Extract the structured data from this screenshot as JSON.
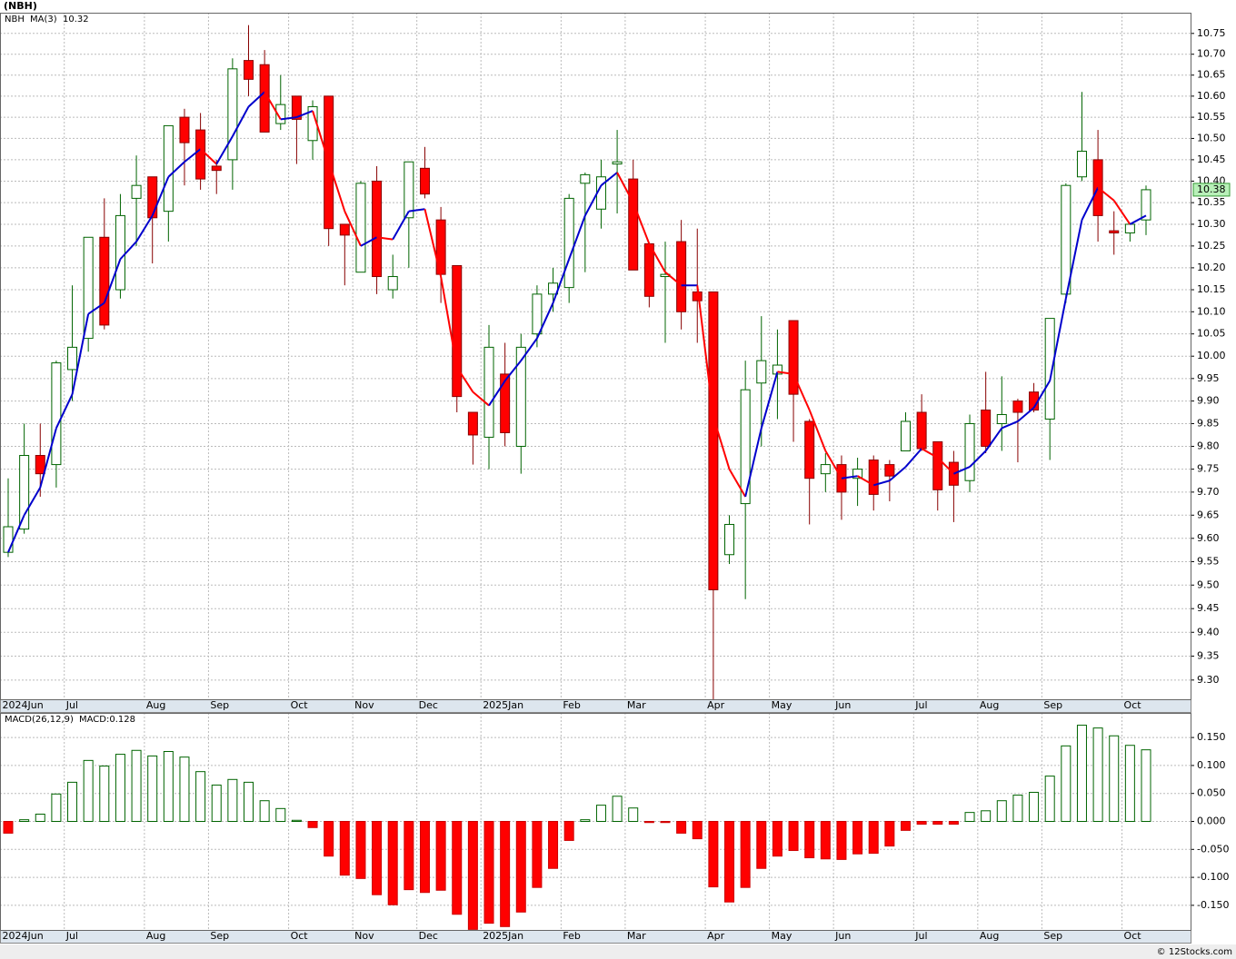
{
  "chart_data": [
    {
      "type": "candlestick",
      "title": "(NBH)",
      "symbol": "NBH",
      "log_scale": true,
      "grid": true,
      "up_color": "#006400",
      "down_color": "#ff0000",
      "categories": [
        "2024Jun",
        null,
        null,
        null,
        "Jul",
        null,
        null,
        null,
        null,
        "Aug",
        null,
        null,
        null,
        "Sep",
        null,
        null,
        null,
        null,
        "Oct",
        null,
        null,
        null,
        "Nov",
        null,
        null,
        null,
        "Dec",
        null,
        null,
        null,
        "2025Jan",
        null,
        null,
        null,
        null,
        "Feb",
        null,
        null,
        null,
        "Mar",
        null,
        null,
        null,
        null,
        "Apr",
        null,
        null,
        null,
        "May",
        null,
        null,
        null,
        "Jun",
        null,
        null,
        null,
        null,
        "Jul",
        null,
        null,
        null,
        "Aug",
        null,
        null,
        null,
        "Sep",
        null,
        null,
        null,
        null,
        "Oct",
        null
      ],
      "open": [
        9.57,
        9.62,
        9.78,
        9.76,
        9.97,
        10.04,
        10.27,
        10.15,
        10.36,
        10.41,
        10.33,
        10.55,
        10.52,
        10.435,
        10.45,
        10.685,
        10.675,
        10.535,
        10.6,
        10.495,
        10.6,
        10.3,
        10.19,
        10.4,
        10.15,
        10.315,
        10.43,
        10.31,
        10.205,
        9.875,
        9.82,
        9.96,
        9.8,
        10.05,
        10.14,
        10.155,
        10.395,
        10.335,
        10.44,
        10.405,
        10.255,
        10.18,
        10.26,
        10.145,
        10.145,
        9.565,
        9.675,
        9.94,
        9.96,
        10.08,
        9.855,
        9.74,
        9.76,
        9.73,
        9.77,
        9.76,
        9.79,
        9.875,
        9.81,
        9.765,
        9.725,
        9.88,
        9.85,
        9.9,
        9.92,
        9.86,
        10.14,
        10.41,
        10.45,
        10.285,
        10.28,
        10.31
      ],
      "high": [
        9.73,
        9.85,
        9.85,
        9.99,
        10.16,
        10.27,
        10.36,
        10.37,
        10.46,
        10.41,
        10.53,
        10.57,
        10.56,
        10.45,
        10.69,
        10.77,
        10.71,
        10.65,
        10.6,
        10.59,
        10.6,
        10.3,
        10.4,
        10.435,
        10.23,
        10.445,
        10.48,
        10.34,
        10.205,
        9.875,
        10.07,
        10.03,
        10.05,
        10.16,
        10.2,
        10.37,
        10.42,
        10.45,
        10.52,
        10.45,
        10.255,
        10.26,
        10.31,
        10.29,
        10.145,
        9.65,
        9.99,
        10.09,
        10.06,
        10.08,
        9.86,
        9.785,
        9.78,
        9.775,
        9.78,
        9.77,
        9.875,
        9.915,
        9.81,
        9.79,
        9.87,
        9.965,
        9.955,
        9.905,
        9.94,
        10.085,
        10.395,
        10.61,
        10.52,
        10.33,
        10.3,
        10.39
      ],
      "low": [
        9.56,
        9.61,
        9.69,
        9.71,
        9.9,
        10.01,
        10.06,
        10.13,
        10.25,
        10.21,
        10.26,
        10.39,
        10.38,
        10.37,
        10.38,
        10.6,
        10.515,
        10.52,
        10.44,
        10.45,
        10.25,
        10.16,
        10.19,
        10.14,
        10.13,
        10.2,
        10.36,
        10.12,
        9.875,
        9.76,
        9.75,
        9.8,
        9.74,
        10.02,
        10.1,
        10.12,
        10.19,
        10.29,
        10.325,
        10.195,
        10.11,
        10.03,
        10.06,
        10.03,
        9.26,
        9.545,
        9.47,
        9.8,
        9.86,
        9.81,
        9.63,
        9.7,
        9.64,
        9.67,
        9.66,
        9.68,
        9.79,
        9.79,
        9.66,
        9.635,
        9.7,
        9.785,
        9.79,
        9.765,
        9.875,
        9.77,
        10.12,
        10.4,
        10.26,
        10.23,
        10.26,
        10.275
      ],
      "close": [
        9.625,
        9.78,
        9.74,
        9.985,
        10.02,
        10.27,
        10.07,
        10.32,
        10.39,
        10.315,
        10.53,
        10.49,
        10.405,
        10.425,
        10.665,
        10.64,
        10.515,
        10.58,
        10.545,
        10.575,
        10.29,
        10.275,
        10.395,
        10.18,
        10.18,
        10.445,
        10.37,
        10.185,
        9.91,
        9.825,
        10.02,
        9.83,
        10.02,
        10.14,
        10.165,
        10.36,
        10.415,
        10.41,
        10.445,
        10.195,
        10.135,
        10.185,
        10.1,
        10.125,
        9.49,
        9.63,
        9.925,
        9.99,
        9.98,
        9.915,
        9.73,
        9.76,
        9.7,
        9.75,
        9.695,
        9.735,
        9.855,
        9.795,
        9.705,
        9.715,
        9.85,
        9.8,
        9.87,
        9.875,
        9.88,
        10.085,
        10.39,
        10.47,
        10.32,
        10.28,
        10.3,
        10.38
      ],
      "last_price_label": "10.38",
      "series": [
        {
          "name": "MA(3)",
          "color": "#0000cc",
          "down_color": "#ff0000",
          "value_label": "10.32",
          "values": [
            9.57,
            9.65,
            9.71,
            9.84,
            9.915,
            10.095,
            10.12,
            10.22,
            10.26,
            10.32,
            10.41,
            10.445,
            10.475,
            10.44,
            10.505,
            10.575,
            10.61,
            10.545,
            10.55,
            10.565,
            10.445,
            10.33,
            10.25,
            10.27,
            10.265,
            10.33,
            10.335,
            10.18,
            9.975,
            9.92,
            9.89,
            9.945,
            9.99,
            10.04,
            10.12,
            10.22,
            10.32,
            10.39,
            10.42,
            10.35,
            10.255,
            10.19,
            10.16,
            10.16,
            9.865,
            9.75,
            9.69,
            9.84,
            9.965,
            9.96,
            9.88,
            9.79,
            9.73,
            9.735,
            9.715,
            9.725,
            9.755,
            9.795,
            9.775,
            9.74,
            9.755,
            9.79,
            9.84,
            9.855,
            9.885,
            9.945,
            10.13,
            10.31,
            10.385,
            10.355,
            10.3,
            10.32
          ]
        }
      ],
      "ylim": [
        9.26,
        10.8
      ],
      "yticks": [
        {
          "value": 9.3,
          "label": "9.30"
        },
        {
          "value": 9.35,
          "label": "9.35"
        },
        {
          "value": 9.4,
          "label": "9.40"
        },
        {
          "value": 9.45,
          "label": "9.45"
        },
        {
          "value": 9.5,
          "label": "9.50"
        },
        {
          "value": 9.55,
          "label": "9.55"
        },
        {
          "value": 9.6,
          "label": "9.60"
        },
        {
          "value": 9.65,
          "label": "9.65"
        },
        {
          "value": 9.7,
          "label": "9.70"
        },
        {
          "value": 9.75,
          "label": "9.75"
        },
        {
          "value": 9.8,
          "label": "9.80"
        },
        {
          "value": 9.85,
          "label": "9.85"
        },
        {
          "value": 9.9,
          "label": "9.90"
        },
        {
          "value": 9.95,
          "label": "9.95"
        },
        {
          "value": 10.0,
          "label": "10.00"
        },
        {
          "value": 10.05,
          "label": "10.05"
        },
        {
          "value": 10.1,
          "label": "10.10"
        },
        {
          "value": 10.15,
          "label": "10.15"
        },
        {
          "value": 10.2,
          "label": "10.20"
        },
        {
          "value": 10.25,
          "label": "10.25"
        },
        {
          "value": 10.3,
          "label": "10.30"
        },
        {
          "value": 10.35,
          "label": "10.35"
        },
        {
          "value": 10.4,
          "label": "10.40"
        },
        {
          "value": 10.45,
          "label": "10.45"
        },
        {
          "value": 10.5,
          "label": "10.50"
        },
        {
          "value": 10.55,
          "label": "10.55"
        },
        {
          "value": 10.6,
          "label": "10.60"
        },
        {
          "value": 10.65,
          "label": "10.65"
        },
        {
          "value": 10.7,
          "label": "10.70"
        },
        {
          "value": 10.75,
          "label": "10.75"
        }
      ]
    },
    {
      "type": "bar",
      "title": "MACD(26,12,9)",
      "value_label": "MACD:0.128",
      "grid": true,
      "up_color": "#006400",
      "down_color": "#ff0000",
      "values": [
        -0.021,
        0.003,
        0.013,
        0.049,
        0.07,
        0.109,
        0.099,
        0.12,
        0.127,
        0.117,
        0.125,
        0.115,
        0.089,
        0.065,
        0.075,
        0.07,
        0.037,
        0.023,
        0.002,
        -0.011,
        -0.062,
        -0.096,
        -0.102,
        -0.131,
        -0.149,
        -0.122,
        -0.127,
        -0.123,
        -0.166,
        -0.193,
        -0.182,
        -0.188,
        -0.162,
        -0.118,
        -0.084,
        -0.034,
        0.003,
        0.029,
        0.045,
        0.024,
        -0.002,
        -0.002,
        -0.021,
        -0.031,
        -0.117,
        -0.144,
        -0.118,
        -0.084,
        -0.062,
        -0.052,
        -0.065,
        -0.067,
        -0.068,
        -0.058,
        -0.057,
        -0.044,
        -0.016,
        -0.005,
        -0.005,
        -0.005,
        0.016,
        0.019,
        0.037,
        0.047,
        0.052,
        0.081,
        0.135,
        0.172,
        0.167,
        0.153,
        0.136,
        0.128
      ],
      "ylim": [
        -0.194,
        0.194
      ],
      "yticks": [
        {
          "value": -0.15,
          "label": "-0.150"
        },
        {
          "value": -0.1,
          "label": "-0.100"
        },
        {
          "value": -0.05,
          "label": "-0.050"
        },
        {
          "value": 0,
          "label": "0.000"
        },
        {
          "value": 0.05,
          "label": "0.050"
        },
        {
          "value": 0.1,
          "label": "0.100"
        },
        {
          "value": 0.15,
          "label": "0.150"
        }
      ]
    }
  ],
  "footer": "© 12Stocks.com"
}
